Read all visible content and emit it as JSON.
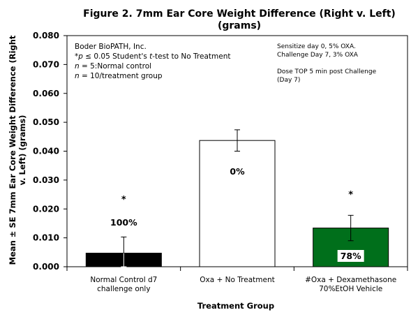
{
  "chart_data": {
    "type": "bar",
    "title_line1": "Figure 2. 7mm Ear Core Weight Difference (Right v. Left)",
    "title_line2": "(grams)",
    "xlabel": "Treatment Group",
    "ylabel_line1": "Mean ± SE 7mm Ear Core Weight Difference (Right",
    "ylabel_line2": "v. Left) (grams)",
    "ylim": [
      0,
      0.08
    ],
    "yticks": [
      "0.000",
      "0.010",
      "0.020",
      "0.030",
      "0.040",
      "0.050",
      "0.060",
      "0.070",
      "0.080"
    ],
    "grid": false,
    "categories": [
      {
        "line1": "Normal Control d7",
        "line2": "challenge only"
      },
      {
        "line1": "Oxa + No Treatment",
        "line2": ""
      },
      {
        "line1": "#Oxa + Dexamethasone",
        "line2": "70%EtOH Vehicle"
      }
    ],
    "values": [
      0.0047,
      0.0437,
      0.0134
    ],
    "errors": [
      0.0056,
      0.0037,
      0.0044
    ],
    "bar_colors": [
      "#000000",
      "#ffffff",
      "#006f1b"
    ],
    "percent_labels": [
      "100%",
      "0%",
      "78%"
    ],
    "significance": [
      "*",
      "",
      "*"
    ]
  },
  "annotations_left": {
    "line1": "Boder BioPATH, Inc.",
    "line2_p": "*p",
    "line2_rest": " ≤ 0.05 Student's ",
    "line2_t": "t",
    "line2_end": "-test to No Treatment",
    "line3_n": "n",
    "line3_rest": " = 5:Normal control",
    "line4_n": "n",
    "line4_rest": " = 10/treatment group"
  },
  "annotations_right": {
    "line1": "Sensitize day 0, 5% OXA.",
    "line2": "Challenge Day 7, 3% OXA",
    "line3": "Dose TOP 5 min post Challenge",
    "line4": "(Day 7)"
  }
}
